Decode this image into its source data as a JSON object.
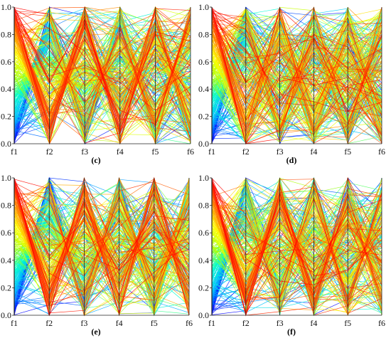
{
  "chart_data": [
    {
      "panel_label": "(c)",
      "type": "parallel-coordinates",
      "axes": [
        "f1",
        "f2",
        "f3",
        "f4",
        "f5",
        "f6"
      ],
      "ylim": [
        0,
        1.0
      ],
      "yticks": [
        "0.0",
        "0.2",
        "0.4",
        "0.6",
        "0.8",
        "1.0"
      ],
      "grid": false,
      "colormap": [
        "#0000ff",
        "#00bfff",
        "#00ffcc",
        "#aaff00",
        "#ffff00",
        "#ff8800",
        "#ff0000"
      ],
      "color_by": "f1",
      "line_count": 300,
      "pattern": [
        0.5,
        0.5,
        0.5,
        0.5,
        0.5
      ],
      "seed": 11
    },
    {
      "panel_label": "(d)",
      "type": "parallel-coordinates",
      "axes": [
        "f1",
        "f2",
        "f3",
        "f4",
        "f5",
        "f6"
      ],
      "ylim": [
        0,
        1.0
      ],
      "yticks": [
        "0.0",
        "0.2",
        "0.4",
        "0.6",
        "0.8",
        "1.0"
      ],
      "grid": false,
      "colormap": [
        "#0000ff",
        "#00bfff",
        "#00ffcc",
        "#aaff00",
        "#ffff00",
        "#ff8800",
        "#ff0000"
      ],
      "color_by": "f1",
      "line_count": 300,
      "pattern": [
        0.25,
        0.25,
        0.25,
        0.25,
        0.25
      ],
      "seed": 23
    },
    {
      "panel_label": "(e)",
      "type": "parallel-coordinates",
      "axes": [
        "f1",
        "f2",
        "f3",
        "f4",
        "f5",
        "f6"
      ],
      "ylim": [
        0,
        1.0
      ],
      "yticks": [
        "0.0",
        "0.2",
        "0.4",
        "0.6",
        "0.8",
        "1.0"
      ],
      "grid": false,
      "colormap": [
        "#0000ff",
        "#00bfff",
        "#00ffcc",
        "#aaff00",
        "#ffff00",
        "#ff8800",
        "#ff0000"
      ],
      "color_by": "f1",
      "line_count": 300,
      "pattern": [
        0.55,
        0.5,
        0.5,
        0.55,
        0.5
      ],
      "seed": 37
    },
    {
      "panel_label": "(f)",
      "type": "parallel-coordinates",
      "axes": [
        "f1",
        "f2",
        "f3",
        "f4",
        "f5",
        "f6"
      ],
      "ylim": [
        0,
        1.0
      ],
      "yticks": [
        "0.0",
        "0.2",
        "0.4",
        "0.6",
        "0.8",
        "1.0"
      ],
      "grid": false,
      "colormap": [
        "#0000ff",
        "#00bfff",
        "#00ffcc",
        "#aaff00",
        "#ffff00",
        "#ff8800",
        "#ff0000"
      ],
      "color_by": "f1",
      "line_count": 300,
      "pattern": [
        0.45,
        0.45,
        0.45,
        0.45,
        0.45
      ],
      "seed": 53
    }
  ]
}
